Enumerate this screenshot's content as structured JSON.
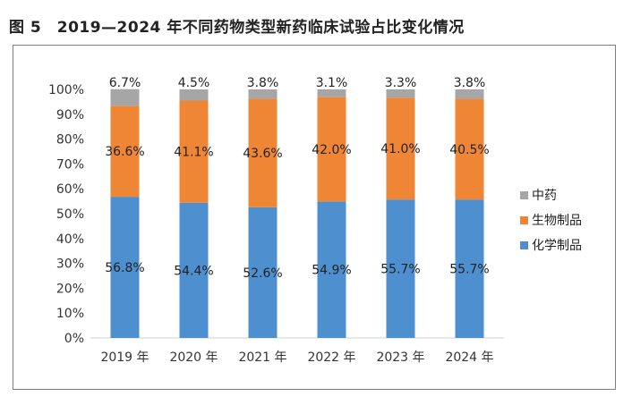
{
  "figure_title": "图 5　2019—2024 年不同药物类型新药临床试验占比变化情况",
  "chart_data": {
    "type": "bar",
    "stacked": true,
    "percent": true,
    "categories": [
      "2019 年",
      "2020 年",
      "2021 年",
      "2022 年",
      "2023 年",
      "2024 年"
    ],
    "series": [
      {
        "name": "化学制品",
        "values": [
          56.8,
          54.4,
          52.6,
          54.9,
          55.7,
          55.7
        ],
        "labels": [
          "56.8%",
          "54.4%",
          "52.6%",
          "54.9%",
          "55.7%",
          "55.7%"
        ],
        "color": "#4e8fd0"
      },
      {
        "name": "生物制品",
        "values": [
          36.6,
          41.1,
          43.6,
          42.0,
          41.0,
          40.5
        ],
        "labels": [
          "36.6%",
          "41.1%",
          "43.6%",
          "42.0%",
          "41.0%",
          "40.5%"
        ],
        "color": "#ee8636"
      },
      {
        "name": "中药",
        "values": [
          6.7,
          4.5,
          3.8,
          3.1,
          3.3,
          3.8
        ],
        "labels": [
          "6.7%",
          "4.5%",
          "3.8%",
          "3.1%",
          "3.3%",
          "3.8%"
        ],
        "color": "#a6a6a6"
      }
    ],
    "ylim": [
      0,
      100
    ],
    "yticks": [
      "0%",
      "10%",
      "20%",
      "30%",
      "40%",
      "50%",
      "60%",
      "70%",
      "80%",
      "90%",
      "100%"
    ],
    "legend_position": "right",
    "legend_order": [
      "中药",
      "生物制品",
      "化学制品"
    ],
    "grid": false
  }
}
